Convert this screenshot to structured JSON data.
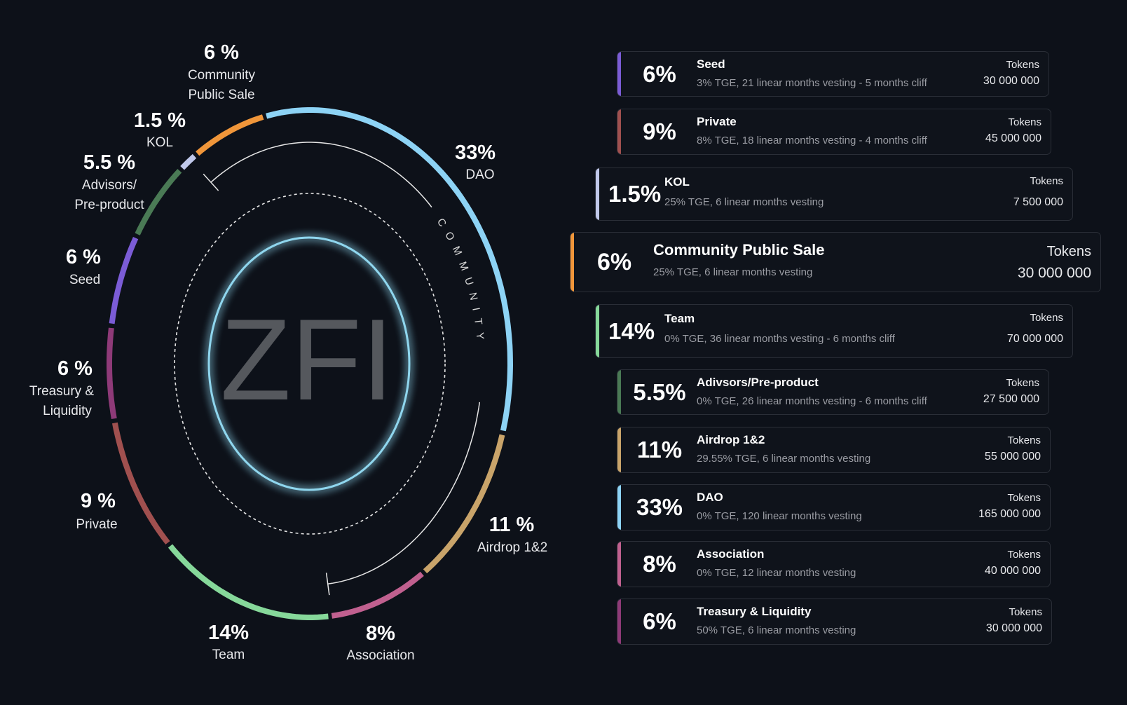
{
  "chart_data": {
    "type": "pie",
    "center_text": "ZFI",
    "group_label": "COMMUNITY",
    "slices": [
      {
        "key": "dao",
        "label": "DAO",
        "pct_label": "33%",
        "value": 33,
        "color": "#8dd3f5"
      },
      {
        "key": "airdrop",
        "label": "Airdrop 1&2",
        "pct_label": "11 %",
        "value": 11,
        "color": "#c9a46a"
      },
      {
        "key": "association",
        "label": "Association",
        "pct_label": "8%",
        "value": 8,
        "color": "#c0608f"
      },
      {
        "key": "team",
        "label": "Team",
        "pct_label": "14%",
        "value": 14,
        "color": "#86d89a"
      },
      {
        "key": "private",
        "label": "Private",
        "pct_label": "9 %",
        "value": 9,
        "color": "#a0504f"
      },
      {
        "key": "treasury",
        "label_lines": [
          "Treasury &",
          "Liquidity"
        ],
        "pct_label": "6 %",
        "value": 6,
        "color": "#8e3a78"
      },
      {
        "key": "seed",
        "label": "Seed",
        "pct_label": "6 %",
        "value": 6,
        "color": "#7b5cd6"
      },
      {
        "key": "advisors",
        "label_lines": [
          "Advisors/",
          "Pre-product"
        ],
        "pct_label": "5.5 %",
        "value": 5.5,
        "color": "#4a7a55"
      },
      {
        "key": "kol",
        "label": "KOL",
        "pct_label": "1.5 %",
        "value": 1.5,
        "color": "#c0c8ea"
      },
      {
        "key": "community",
        "label_lines": [
          "Community",
          "Public Sale"
        ],
        "pct_label": "6 %",
        "value": 6,
        "color": "#f0963a"
      }
    ]
  },
  "cards": [
    {
      "pct": "6%",
      "title": "Seed",
      "desc": "3% TGE, 21 linear months vesting - 5 months cliff",
      "tokens_label": "Tokens",
      "tokens": "30 000 000",
      "color": "#7b5cd6"
    },
    {
      "pct": "9%",
      "title": "Private",
      "desc": "8% TGE, 18 linear months vesting - 4 months cliff",
      "tokens_label": "Tokens",
      "tokens": "45 000 000",
      "color": "#a0504f"
    },
    {
      "pct": "1.5%",
      "title": "KOL",
      "desc": "25% TGE, 6 linear months vesting",
      "tokens_label": "Tokens",
      "tokens": "7 500 000",
      "color": "#c0c8ea"
    },
    {
      "pct": "6%",
      "title": "Community Public Sale",
      "desc": "25% TGE, 6 linear months vesting",
      "tokens_label": "Tokens",
      "tokens": "30 000 000",
      "color": "#f0963a"
    },
    {
      "pct": "14%",
      "title": "Team",
      "desc": "0% TGE, 36 linear months vesting - 6 months cliff",
      "tokens_label": "Tokens",
      "tokens": "70 000 000",
      "color": "#86d89a"
    },
    {
      "pct": "5.5%",
      "title": "Adivsors/Pre-product",
      "desc": "0% TGE, 26 linear months vesting - 6 months cliff",
      "tokens_label": "Tokens",
      "tokens": "27 500 000",
      "color": "#4a7a55"
    },
    {
      "pct": "11%",
      "title": "Airdrop 1&2",
      "desc": "29.55% TGE, 6 linear months vesting",
      "tokens_label": "Tokens",
      "tokens": "55 000 000",
      "color": "#c9a46a"
    },
    {
      "pct": "33%",
      "title": "DAO",
      "desc": "0% TGE, 120 linear months vesting",
      "tokens_label": "Tokens",
      "tokens": "165 000 000",
      "color": "#8dd3f5"
    },
    {
      "pct": "8%",
      "title": "Association",
      "desc": "0% TGE, 12 linear months vesting",
      "tokens_label": "Tokens",
      "tokens": "40 000 000",
      "color": "#c0608f"
    },
    {
      "pct": "6%",
      "title": "Treasury & Liquidity",
      "desc": "50% TGE, 6 linear months vesting",
      "tokens_label": "Tokens",
      "tokens": "30 000 000",
      "color": "#8e3a78"
    }
  ]
}
